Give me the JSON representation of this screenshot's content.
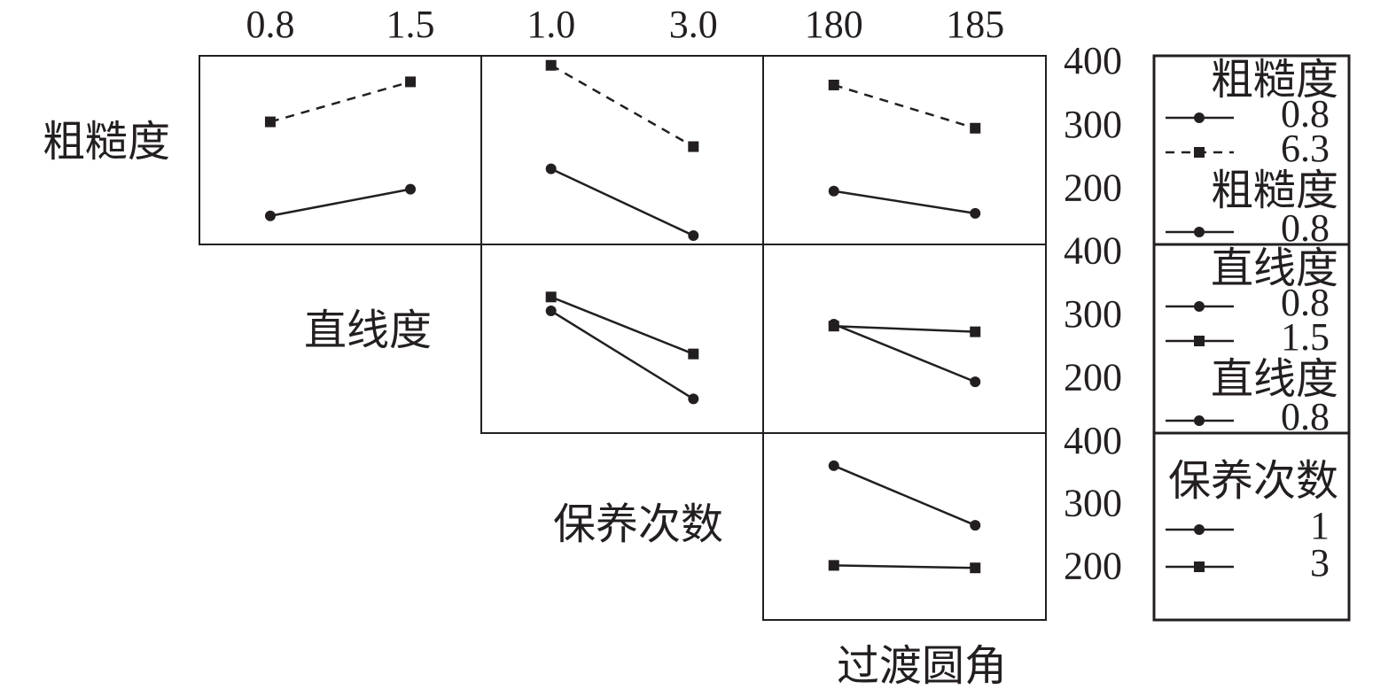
{
  "chart_data": [
    {
      "type": "line",
      "x": [
        0.8,
        1.5
      ],
      "xlim": [
        0.446,
        1.854
      ],
      "ylim": [
        117,
        414
      ],
      "xticks": [
        0.8,
        1.5
      ],
      "series": [
        {
          "color": "#231f20",
          "marker": "circle",
          "values": [
            162,
            204
          ]
        },
        {
          "color": "#231f20",
          "marker": "square",
          "dashed": true,
          "values": [
            310,
            373
          ]
        }
      ]
    },
    {
      "type": "line",
      "x": [
        1,
        3
      ],
      "xlim": [
        0.02,
        3.98
      ],
      "ylim": [
        117,
        414
      ],
      "xticks": [
        {
          "value": 1,
          "label": "1.0"
        },
        {
          "value": 3,
          "label": "3.0"
        }
      ],
      "series": [
        {
          "color": "#231f20",
          "marker": "circle",
          "values": [
            236,
            131
          ]
        },
        {
          "color": "#231f20",
          "marker": "square",
          "dashed": true,
          "values": [
            399,
            271
          ]
        }
      ]
    },
    {
      "type": "line",
      "x": [
        180,
        185
      ],
      "xlim": [
        177.5,
        187.5
      ],
      "ylim": [
        117,
        414
      ],
      "xticks": [
        180,
        185
      ],
      "yticks": [
        200,
        300,
        400
      ],
      "legend_title": "粗糙度",
      "legend_repeat": {
        "title": "粗糙度",
        "entry": "0.8"
      },
      "series": [
        {
          "name": "0.8",
          "color": "#231f20",
          "marker": "circle",
          "values": [
            201,
            166
          ]
        },
        {
          "name": "6.3",
          "color": "#231f20",
          "marker": "square",
          "dashed": true,
          "values": [
            368,
            300
          ]
        }
      ]
    },
    {
      "type": "line",
      "x": [
        1,
        3
      ],
      "xlim": [
        0.02,
        3.98
      ],
      "ylim": [
        118,
        416
      ],
      "series": [
        {
          "color": "#231f20",
          "marker": "circle",
          "values": [
            311,
            172
          ]
        },
        {
          "color": "#231f20",
          "marker": "square",
          "values": [
            333,
            243
          ]
        }
      ]
    },
    {
      "type": "line",
      "x": [
        180,
        185
      ],
      "xlim": [
        177.5,
        187.5
      ],
      "ylim": [
        118,
        416
      ],
      "yticks": [
        200,
        300,
        400
      ],
      "legend_title": "直线度",
      "legend_repeat": {
        "title": "直线度",
        "entry": "0.8"
      },
      "series": [
        {
          "name": "0.8",
          "color": "#231f20",
          "marker": "circle",
          "values": [
            290,
            199
          ]
        },
        {
          "name": "1.5",
          "color": "#231f20",
          "marker": "square",
          "values": [
            287,
            278
          ]
        }
      ]
    },
    {
      "type": "line",
      "x": [
        180,
        185
      ],
      "xlim": [
        177.5,
        187.5
      ],
      "ylim": [
        120,
        418
      ],
      "yticks": [
        200,
        300,
        400
      ],
      "legend_title": "保养次数",
      "series": [
        {
          "name": "1",
          "color": "#231f20",
          "marker": "circle",
          "values": [
            366,
            271
          ]
        },
        {
          "name": "3",
          "color": "#231f20",
          "marker": "square",
          "values": [
            207,
            203
          ]
        }
      ]
    }
  ],
  "factors": [
    "粗糙度",
    "直线度",
    "保养次数",
    "过渡圆角"
  ]
}
